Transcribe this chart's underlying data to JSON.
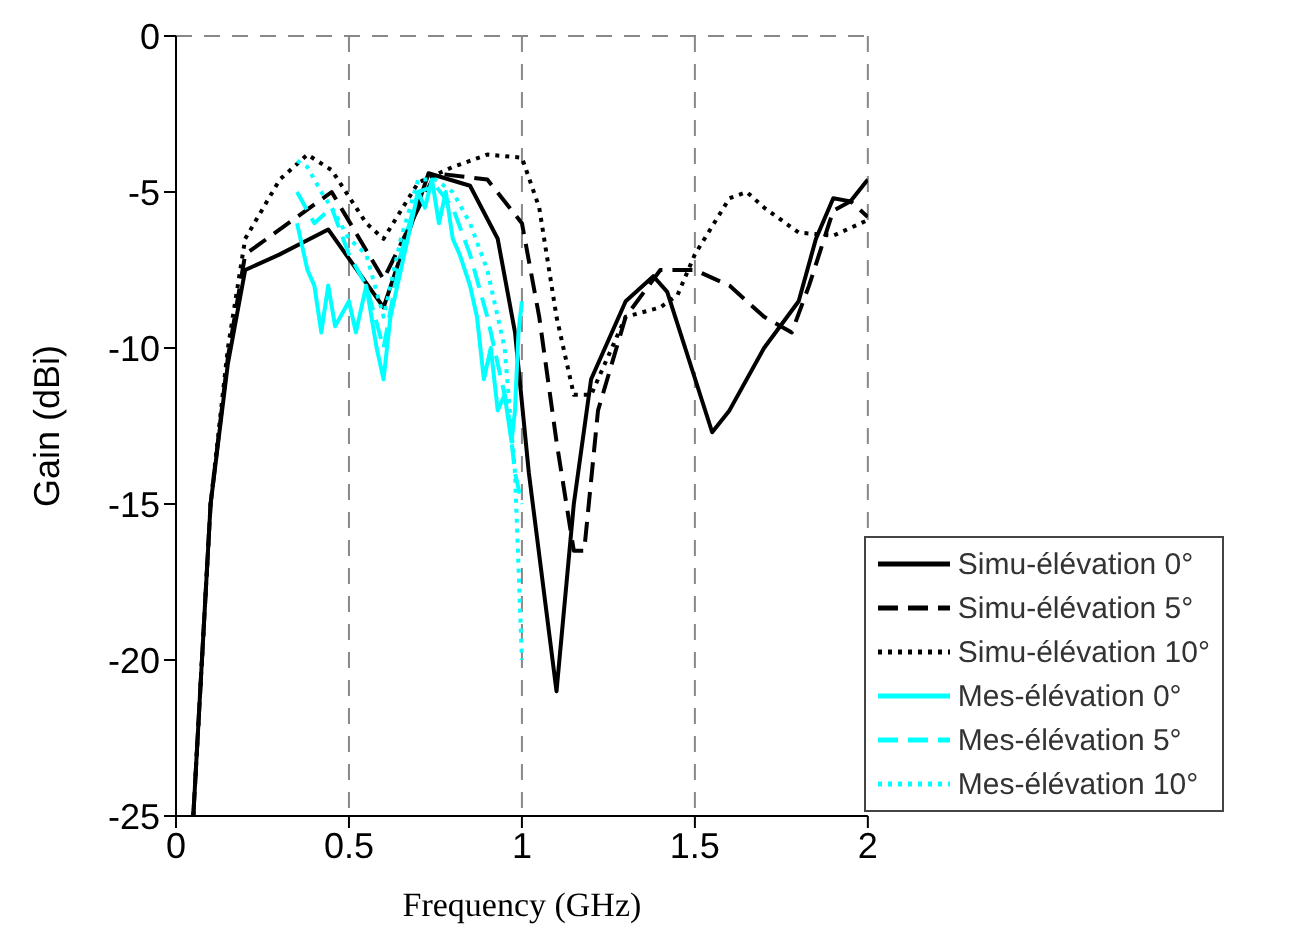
{
  "chart_data": {
    "type": "line",
    "xlabel": "Frequency (GHz)",
    "ylabel": "Gain (dBi)",
    "xlim": [
      0,
      2
    ],
    "xticks": [
      0,
      0.5,
      1,
      1.5,
      2
    ],
    "ylim": [
      -25,
      0
    ],
    "yticks": [
      -25,
      -20,
      -15,
      -10,
      -5,
      0
    ],
    "grid": true,
    "legend": "bottom right",
    "series": [
      {
        "name": "Simu-élévation 0°",
        "color": "#000000",
        "line_style": "solid",
        "x": [
          0.05,
          0.1,
          0.15,
          0.2,
          0.3,
          0.44,
          0.6,
          0.73,
          0.85,
          0.93,
          0.98,
          1.02,
          1.1,
          1.15,
          1.2,
          1.3,
          1.38,
          1.42,
          1.55,
          1.6,
          1.7,
          1.8,
          1.85,
          1.9,
          1.95,
          2.0
        ],
        "values": [
          -25,
          -15,
          -10.5,
          -7.5,
          -7,
          -6.2,
          -8.7,
          -4.4,
          -4.8,
          -6.5,
          -9.5,
          -14,
          -21,
          -15,
          -11,
          -8.5,
          -7.7,
          -8.2,
          -12.7,
          -12,
          -10,
          -8.5,
          -6.5,
          -5.2,
          -5.3,
          -4.6
        ]
      },
      {
        "name": "Simu-élévation 5°",
        "color": "#000000",
        "line_style": "dashed",
        "x": [
          0.05,
          0.1,
          0.15,
          0.2,
          0.45,
          0.6,
          0.75,
          0.9,
          1.0,
          1.05,
          1.1,
          1.15,
          1.18,
          1.22,
          1.3,
          1.4,
          1.5,
          1.6,
          1.7,
          1.78,
          1.83,
          1.9,
          1.95,
          2.0
        ],
        "values": [
          -25,
          -15,
          -10.3,
          -7,
          -5,
          -7.8,
          -4.4,
          -4.6,
          -6,
          -9,
          -13,
          -16.5,
          -16.5,
          -12,
          -9,
          -7.5,
          -7.5,
          -8,
          -9,
          -9.5,
          -8,
          -5.6,
          -5.3,
          -5.8
        ]
      },
      {
        "name": "Simu-élévation 10°",
        "color": "#000000",
        "line_style": "dotted",
        "x": [
          0.05,
          0.1,
          0.15,
          0.2,
          0.3,
          0.38,
          0.45,
          0.55,
          0.6,
          0.7,
          0.8,
          0.9,
          1.0,
          1.05,
          1.1,
          1.15,
          1.2,
          1.3,
          1.4,
          1.45,
          1.5,
          1.6,
          1.65,
          1.7,
          1.8,
          1.9,
          2.0
        ],
        "values": [
          -25,
          -15,
          -10,
          -6.5,
          -4.6,
          -3.8,
          -4.3,
          -6,
          -6.5,
          -4.7,
          -4.2,
          -3.8,
          -3.9,
          -5.5,
          -9,
          -11.5,
          -11.5,
          -9,
          -8.7,
          -8.3,
          -7,
          -5.2,
          -5,
          -5.5,
          -6.3,
          -6.4,
          -5.9
        ]
      },
      {
        "name": "Mes-élévation 0°",
        "color": "#00ffff",
        "line_style": "solid",
        "x": [
          0.35,
          0.38,
          0.4,
          0.42,
          0.44,
          0.46,
          0.5,
          0.52,
          0.55,
          0.58,
          0.6,
          0.62,
          0.65,
          0.68,
          0.7,
          0.72,
          0.74,
          0.76,
          0.78,
          0.8,
          0.82,
          0.85,
          0.87,
          0.89,
          0.91,
          0.93,
          0.95,
          0.97,
          0.98,
          0.99,
          1.0
        ],
        "values": [
          -6,
          -7.5,
          -8,
          -9.5,
          -8,
          -9.3,
          -8.5,
          -9.5,
          -8,
          -10,
          -11,
          -9,
          -7.5,
          -6,
          -5,
          -5.5,
          -4.6,
          -6,
          -5,
          -6.5,
          -7,
          -8,
          -9,
          -11,
          -10,
          -12,
          -11.5,
          -13,
          -12,
          -9.5,
          -8.5
        ]
      },
      {
        "name": "Mes-élévation 5°",
        "color": "#00ffff",
        "line_style": "dashed",
        "x": [
          0.35,
          0.4,
          0.45,
          0.5,
          0.55,
          0.6,
          0.65,
          0.7,
          0.75,
          0.8,
          0.85,
          0.9,
          0.93,
          0.96,
          0.98,
          1.0
        ],
        "values": [
          -5,
          -6,
          -5.5,
          -7,
          -8,
          -10,
          -7,
          -5,
          -4.8,
          -5.5,
          -7,
          -9,
          -10.5,
          -12,
          -14,
          -15
        ]
      },
      {
        "name": "Mes-élévation 10°",
        "color": "#00ffff",
        "line_style": "dotted",
        "x": [
          0.35,
          0.38,
          0.42,
          0.45,
          0.5,
          0.55,
          0.6,
          0.65,
          0.7,
          0.75,
          0.8,
          0.85,
          0.9,
          0.95,
          0.98,
          1.0
        ],
        "values": [
          -4,
          -4.2,
          -5,
          -5.5,
          -6.5,
          -7,
          -9,
          -6.5,
          -4.6,
          -4.6,
          -5,
          -6,
          -7.5,
          -10,
          -14,
          -20
        ]
      }
    ]
  }
}
